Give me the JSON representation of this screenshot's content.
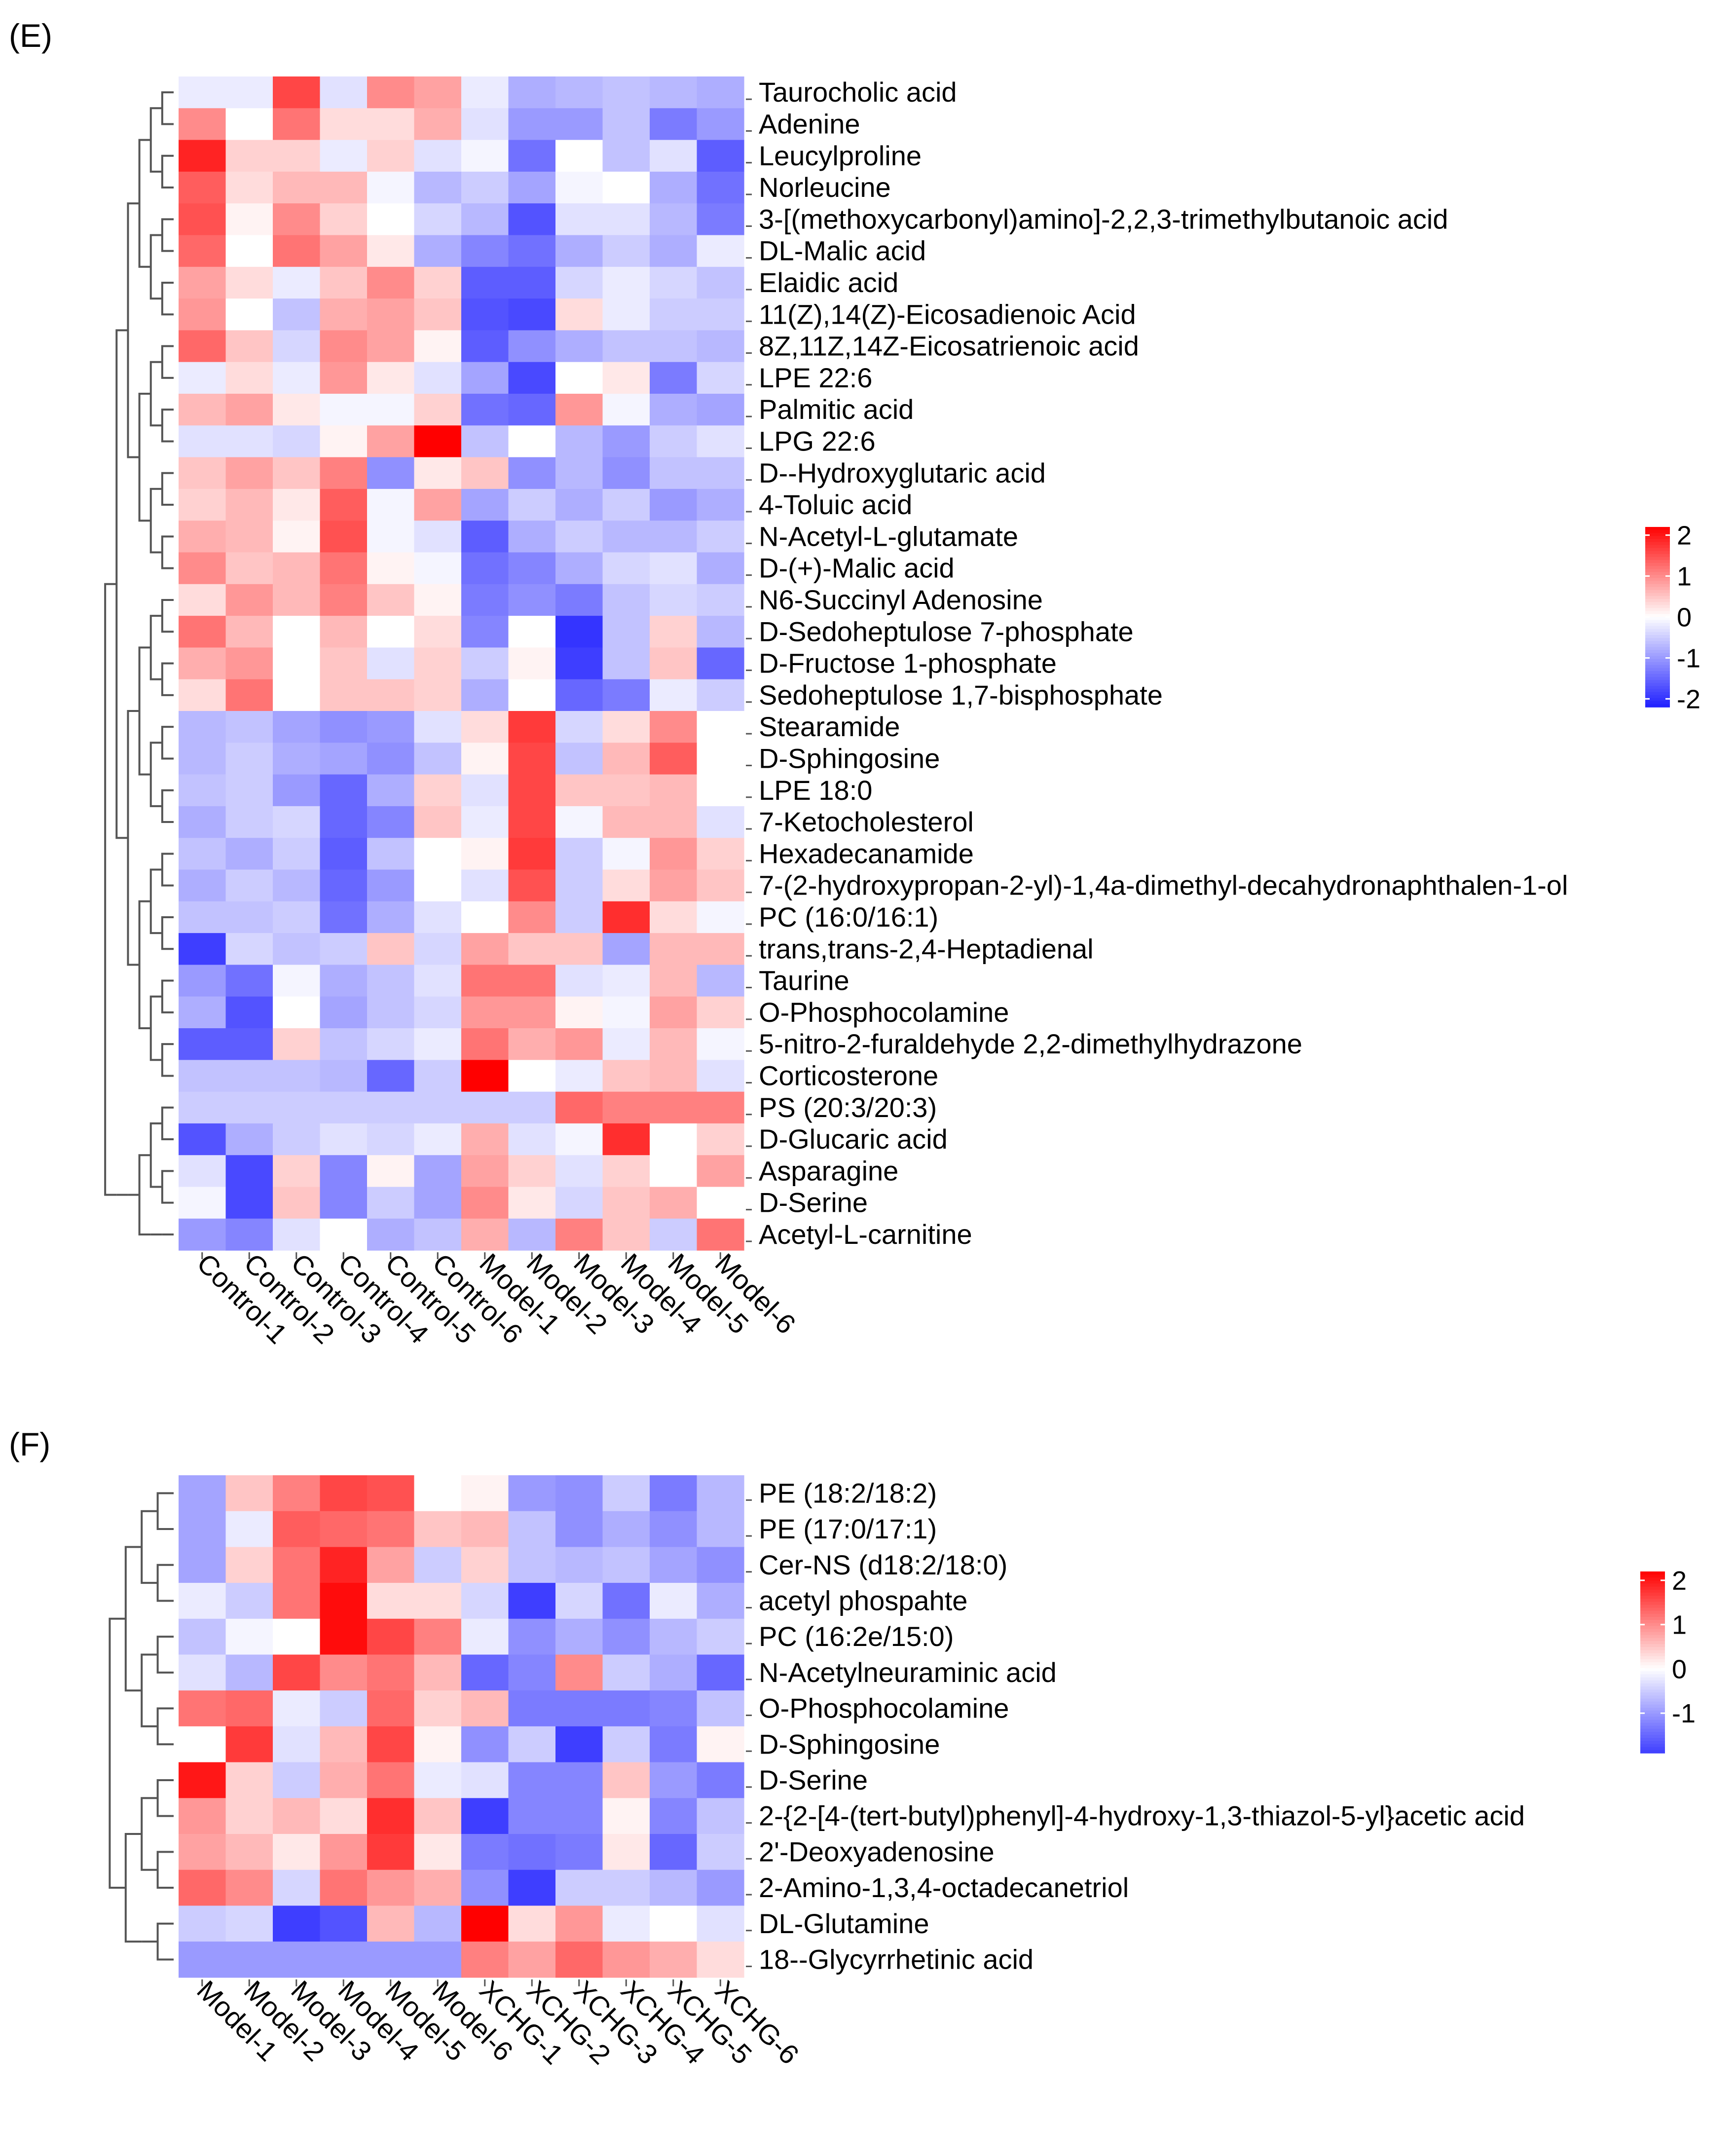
{
  "colors": {
    "low": "#2020ff",
    "mid": "#ffffff",
    "high": "#ff0000",
    "dendrogram": "#555555"
  },
  "chart_data": [
    {
      "type": "heatmap",
      "panel_label": "(E)",
      "columns": [
        "Control-1",
        "Control-2",
        "Control-3",
        "Control-4",
        "Control-5",
        "Control-6",
        "Model-1",
        "Model-2",
        "Model-3",
        "Model-4",
        "Model-5",
        "Model-6"
      ],
      "rows": [
        "Taurocholic acid",
        "Adenine",
        "Leucylproline",
        "Norleucine",
        "3-[(methoxycarbonyl)amino]-2,2,3-trimethylbutanoic acid",
        "DL-Malic acid",
        "Elaidic acid",
        "11(Z),14(Z)-Eicosadienoic Acid",
        "8Z,11Z,14Z-Eicosatrienoic acid",
        "LPE 22:6",
        "Palmitic acid",
        "LPG 22:6",
        "D--Hydroxyglutaric acid",
        "4-Toluic acid",
        "N-Acetyl-L-glutamate",
        "D-(+)-Malic acid",
        "N6-Succinyl Adenosine",
        "D-Sedoheptulose 7-phosphate",
        "D-Fructose 1-phosphate",
        "Sedoheptulose 1,7-bisphosphate",
        "Stearamide",
        "D-Sphingosine",
        "LPE 18:0",
        "7-Ketocholesterol",
        "Hexadecanamide",
        "7-(2-hydroxypropan-2-yl)-1,4a-dimethyl-decahydronaphthalen-1-ol",
        "PC (16:0/16:1)",
        "trans,trans-2,4-Heptadienal",
        "Taurine",
        "O-Phosphocolamine",
        "5-nitro-2-furaldehyde 2,2-dimethylhydrazone",
        "Corticosterone",
        "PS (20:3/20:3)",
        "D-Glucaric acid",
        "Asparagine",
        "D-Serine",
        "Acetyl-L-carnitine"
      ],
      "values": [
        [
          -0.2,
          -0.2,
          1.6,
          -0.3,
          1.0,
          0.8,
          -0.2,
          -0.8,
          -0.7,
          -0.6,
          -0.7,
          -0.8
        ],
        [
          1.0,
          0.0,
          1.2,
          0.3,
          0.3,
          0.7,
          -0.3,
          -1.0,
          -1.0,
          -0.6,
          -1.3,
          -1.0
        ],
        [
          1.9,
          0.4,
          0.4,
          -0.2,
          0.4,
          -0.3,
          -0.1,
          -1.4,
          0.0,
          -0.6,
          -0.3,
          -1.6
        ],
        [
          1.4,
          0.3,
          0.6,
          0.6,
          -0.1,
          -0.7,
          -0.5,
          -0.9,
          -0.1,
          0.0,
          -0.8,
          -1.4
        ],
        [
          1.5,
          0.1,
          1.0,
          0.4,
          0.0,
          -0.4,
          -0.7,
          -1.7,
          -0.3,
          -0.3,
          -0.7,
          -1.3
        ],
        [
          1.3,
          0.0,
          1.2,
          0.8,
          0.2,
          -0.8,
          -1.2,
          -1.4,
          -0.8,
          -0.5,
          -0.8,
          -0.2
        ],
        [
          0.8,
          0.3,
          -0.2,
          0.5,
          1.0,
          0.4,
          -1.6,
          -1.6,
          -0.4,
          -0.2,
          -0.4,
          -0.6
        ],
        [
          0.9,
          0.0,
          -0.6,
          0.7,
          0.8,
          0.5,
          -1.7,
          -1.8,
          0.3,
          -0.2,
          -0.5,
          -0.5
        ],
        [
          1.3,
          0.5,
          -0.4,
          1.0,
          0.8,
          0.1,
          -1.6,
          -1.1,
          -0.8,
          -0.6,
          -0.6,
          -0.7
        ],
        [
          -0.2,
          0.3,
          -0.2,
          0.9,
          0.2,
          -0.3,
          -0.9,
          -1.8,
          0.0,
          0.2,
          -1.3,
          -0.4
        ],
        [
          0.6,
          0.8,
          0.2,
          -0.1,
          -0.1,
          0.4,
          -1.4,
          -1.5,
          0.9,
          -0.1,
          -0.8,
          -0.9
        ],
        [
          -0.3,
          -0.3,
          -0.4,
          0.1,
          0.8,
          2.2,
          -0.6,
          0.0,
          -0.7,
          -1.0,
          -0.5,
          -0.3
        ],
        [
          0.5,
          0.8,
          0.5,
          1.1,
          -1.1,
          0.2,
          0.5,
          -1.1,
          -0.7,
          -1.1,
          -0.6,
          -0.6
        ],
        [
          0.4,
          0.6,
          0.2,
          1.4,
          -0.1,
          0.8,
          -0.9,
          -0.5,
          -0.8,
          -0.5,
          -1.0,
          -0.8
        ],
        [
          0.7,
          0.6,
          0.1,
          1.5,
          -0.1,
          -0.3,
          -1.6,
          -0.8,
          -0.5,
          -0.7,
          -0.7,
          -0.5
        ],
        [
          1.0,
          0.5,
          0.6,
          1.2,
          0.1,
          -0.1,
          -1.4,
          -1.2,
          -0.8,
          -0.4,
          -0.3,
          -0.8
        ],
        [
          0.3,
          0.9,
          0.6,
          1.1,
          0.5,
          0.1,
          -1.3,
          -1.1,
          -1.3,
          -0.6,
          -0.4,
          -0.5
        ],
        [
          1.2,
          0.6,
          0.0,
          0.6,
          0.0,
          0.3,
          -1.2,
          0.0,
          -2.0,
          -0.6,
          0.4,
          -0.7
        ],
        [
          0.7,
          0.9,
          0.0,
          0.5,
          -0.3,
          0.4,
          -0.5,
          0.1,
          -1.9,
          -0.6,
          0.5,
          -1.5
        ],
        [
          0.3,
          1.2,
          0.0,
          0.5,
          0.5,
          0.4,
          -0.8,
          0.0,
          -1.5,
          -1.3,
          -0.2,
          -0.5
        ],
        [
          -0.7,
          -0.6,
          -0.9,
          -1.1,
          -1.0,
          -0.3,
          0.3,
          1.7,
          -0.4,
          0.3,
          1.0,
          0.0
        ],
        [
          -0.7,
          -0.5,
          -0.8,
          -0.9,
          -1.1,
          -0.6,
          0.1,
          1.6,
          -0.6,
          0.6,
          1.4,
          0.0
        ],
        [
          -0.6,
          -0.5,
          -1.0,
          -1.5,
          -0.8,
          0.4,
          -0.3,
          1.6,
          0.5,
          0.5,
          0.6,
          0.0
        ],
        [
          -0.8,
          -0.5,
          -0.4,
          -1.5,
          -1.2,
          0.5,
          -0.2,
          1.6,
          -0.1,
          0.6,
          0.6,
          -0.3
        ],
        [
          -0.6,
          -0.8,
          -0.5,
          -1.6,
          -0.6,
          0.0,
          0.1,
          1.7,
          -0.5,
          -0.1,
          0.9,
          0.4
        ],
        [
          -0.8,
          -0.5,
          -0.7,
          -1.5,
          -1.0,
          0.0,
          -0.3,
          1.5,
          -0.5,
          0.3,
          0.8,
          0.5
        ],
        [
          -0.6,
          -0.6,
          -0.5,
          -1.4,
          -0.8,
          -0.3,
          0.0,
          1.0,
          -0.5,
          1.8,
          0.3,
          -0.1
        ],
        [
          -1.9,
          -0.4,
          -0.6,
          -0.5,
          0.5,
          -0.4,
          0.8,
          0.5,
          0.5,
          -0.9,
          0.6,
          0.6
        ],
        [
          -1.0,
          -1.4,
          -0.1,
          -0.8,
          -0.6,
          -0.3,
          1.2,
          1.2,
          -0.3,
          -0.2,
          0.6,
          -0.7
        ],
        [
          -0.8,
          -1.7,
          0.0,
          -0.9,
          -0.6,
          -0.4,
          0.9,
          0.9,
          0.1,
          -0.1,
          0.8,
          0.4
        ],
        [
          -1.6,
          -1.6,
          0.4,
          -0.6,
          -0.4,
          -0.2,
          1.2,
          0.7,
          0.9,
          -0.2,
          0.6,
          -0.1
        ],
        [
          -0.6,
          -0.6,
          -0.6,
          -0.7,
          -1.5,
          -0.5,
          2.2,
          0.0,
          -0.2,
          0.5,
          0.6,
          -0.3
        ],
        [
          -0.5,
          -0.5,
          -0.5,
          -0.5,
          -0.5,
          -0.5,
          -0.5,
          -0.5,
          1.3,
          1.1,
          1.1,
          1.1
        ],
        [
          -1.7,
          -0.8,
          -0.5,
          -0.3,
          -0.4,
          -0.2,
          0.7,
          -0.3,
          -0.1,
          1.8,
          0.0,
          0.4
        ],
        [
          -0.3,
          -1.8,
          0.4,
          -1.2,
          0.1,
          -0.9,
          0.8,
          0.4,
          -0.3,
          0.4,
          0.0,
          0.8
        ],
        [
          -0.1,
          -1.8,
          0.5,
          -1.2,
          -0.5,
          -0.9,
          1.0,
          0.2,
          -0.4,
          0.5,
          0.7,
          0.0
        ],
        [
          -1.0,
          -1.2,
          -0.3,
          0.0,
          -0.8,
          -0.6,
          0.7,
          -0.7,
          1.1,
          0.5,
          -0.5,
          1.2
        ]
      ],
      "legend": {
        "ticks": [
          "2",
          "1",
          "0",
          "-1",
          "-2"
        ],
        "range": [
          -2.2,
          2.2
        ]
      }
    },
    {
      "type": "heatmap",
      "panel_label": "(F)",
      "columns": [
        "Model-1",
        "Model-2",
        "Model-3",
        "Model-4",
        "Model-5",
        "Model-6",
        "XCHG-1",
        "XCHG-2",
        "XCHG-3",
        "XCHG-4",
        "XCHG-5",
        "XCHG-6"
      ],
      "rows": [
        "PE (18:2/18:2)",
        "PE (17:0/17:1)",
        "Cer-NS (d18:2/18:0)",
        "acetyl phospahte",
        "PC (16:2e/15:0)",
        "N-Acetylneuraminic acid",
        "O-Phosphocolamine",
        "D-Sphingosine",
        "D-Serine",
        "2-{2-[4-(tert-butyl)phenyl]-4-hydroxy-1,3-thiazol-5-yl}acetic acid",
        "2'-Deoxyadenosine",
        "2-Amino-1,3,4-octadecanetriol",
        "DL-Glutamine",
        "18--Glycyrrhetinic acid"
      ],
      "values": [
        [
          -0.9,
          0.5,
          1.1,
          1.6,
          1.5,
          0.0,
          0.1,
          -1.0,
          -1.1,
          -0.5,
          -1.3,
          -0.7
        ],
        [
          -0.9,
          -0.2,
          1.4,
          1.3,
          1.2,
          0.5,
          0.6,
          -0.6,
          -1.1,
          -0.8,
          -1.1,
          -0.7
        ],
        [
          -0.9,
          0.4,
          1.2,
          1.9,
          0.8,
          -0.5,
          0.4,
          -0.6,
          -0.7,
          -0.6,
          -0.9,
          -1.1
        ],
        [
          -0.2,
          -0.5,
          1.2,
          2.1,
          0.3,
          0.3,
          -0.4,
          -1.9,
          -0.4,
          -1.4,
          -0.2,
          -0.8
        ],
        [
          -0.6,
          -0.1,
          0.0,
          2.1,
          1.6,
          1.1,
          -0.2,
          -1.1,
          -0.8,
          -1.1,
          -0.7,
          -0.5
        ],
        [
          -0.3,
          -0.7,
          1.6,
          1.0,
          1.2,
          0.6,
          -1.5,
          -1.2,
          1.0,
          -0.5,
          -0.8,
          -1.5
        ],
        [
          1.2,
          1.3,
          -0.2,
          -0.5,
          1.3,
          0.4,
          0.6,
          -1.3,
          -1.3,
          -1.3,
          -1.2,
          -0.6
        ],
        [
          0.0,
          1.7,
          -0.3,
          0.6,
          1.6,
          0.1,
          -1.1,
          -0.5,
          -1.9,
          -0.5,
          -1.3,
          0.1
        ],
        [
          2.0,
          0.4,
          -0.5,
          0.7,
          1.2,
          -0.2,
          -0.3,
          -1.2,
          -1.2,
          0.5,
          -1.0,
          -1.3
        ],
        [
          0.9,
          0.4,
          0.6,
          0.3,
          1.8,
          0.5,
          -1.9,
          -1.2,
          -1.2,
          0.1,
          -1.2,
          -0.6
        ],
        [
          0.8,
          0.6,
          0.2,
          0.9,
          1.7,
          0.2,
          -1.3,
          -1.4,
          -1.3,
          0.2,
          -1.5,
          -0.5
        ],
        [
          1.3,
          1.0,
          -0.4,
          1.2,
          0.9,
          0.7,
          -1.1,
          -1.9,
          -0.5,
          -0.5,
          -0.7,
          -1.0
        ],
        [
          -0.5,
          -0.4,
          -1.9,
          -1.7,
          0.6,
          -0.7,
          2.2,
          0.3,
          0.9,
          -0.2,
          0.0,
          -0.3
        ],
        [
          -1.0,
          -1.0,
          -1.0,
          -1.0,
          -1.0,
          -1.0,
          1.1,
          0.8,
          1.3,
          0.9,
          0.7,
          0.3
        ]
      ],
      "legend": {
        "ticks": [
          "2",
          "1",
          "0",
          "-1"
        ],
        "range": [
          -1.9,
          2.2
        ]
      }
    }
  ]
}
